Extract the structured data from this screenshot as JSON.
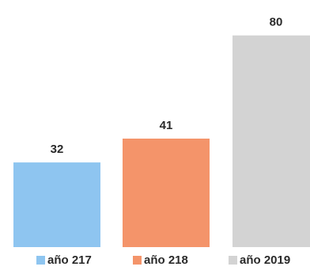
{
  "chart_data": {
    "type": "bar",
    "categories": [
      "año 217",
      "año 218",
      "año 2019"
    ],
    "values": [
      32,
      41,
      80
    ],
    "colors": [
      "#8ec5f0",
      "#f4946a",
      "#d3d3d3"
    ],
    "title": "",
    "xlabel": "",
    "ylabel": "",
    "ylim": [
      0,
      85
    ],
    "grid": false,
    "legend": "bottom"
  }
}
